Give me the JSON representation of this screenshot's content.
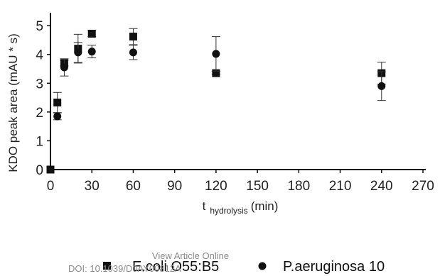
{
  "chart_data": {
    "type": "scatter",
    "ylabel": "KDO peak area (mAU * s)",
    "xlabel_main": "t",
    "xlabel_sub": "hydrolysis",
    "xlabel_unit": "(min)",
    "xlim": [
      0,
      270
    ],
    "ylim": [
      0,
      5.3
    ],
    "x_ticks": [
      0,
      30,
      60,
      90,
      120,
      150,
      180,
      210,
      240,
      270
    ],
    "y_ticks": [
      0,
      1,
      2,
      3,
      4,
      5
    ],
    "grid": false,
    "legend_position": "bottom",
    "series": [
      {
        "name": "E.coli O55:B5",
        "marker": "square",
        "points": [
          {
            "x": 0,
            "y": 0.0,
            "err": 0
          },
          {
            "x": 5,
            "y": 2.33,
            "err": 0.35
          },
          {
            "x": 10,
            "y": 3.7,
            "err": 0.1
          },
          {
            "x": 20,
            "y": 4.2,
            "err": 0.5
          },
          {
            "x": 30,
            "y": 4.72,
            "err": 0.1
          },
          {
            "x": 60,
            "y": 4.62,
            "err": 0.28
          },
          {
            "x": 120,
            "y": 3.35,
            "err": 0.06
          },
          {
            "x": 240,
            "y": 3.35,
            "err": 0.38
          }
        ]
      },
      {
        "name": "P.aeruginosa 10",
        "marker": "circle",
        "points": [
          {
            "x": 5,
            "y": 1.85,
            "err": 0.12
          },
          {
            "x": 10,
            "y": 3.55,
            "err": 0.3
          },
          {
            "x": 20,
            "y": 4.07,
            "err": 0.35
          },
          {
            "x": 30,
            "y": 4.1,
            "err": 0.22
          },
          {
            "x": 60,
            "y": 4.07,
            "err": 0.25
          },
          {
            "x": 120,
            "y": 4.02,
            "err": 0.6
          },
          {
            "x": 240,
            "y": 2.9,
            "err": 0.5
          }
        ]
      }
    ]
  },
  "overlay": {
    "view_article_online": "View Article Online",
    "doi": "DOI: 10.1039/D0AY00812A"
  },
  "colors": {
    "marker": "#111111",
    "axis": "#111111",
    "overlay": "#8a8a8a"
  }
}
